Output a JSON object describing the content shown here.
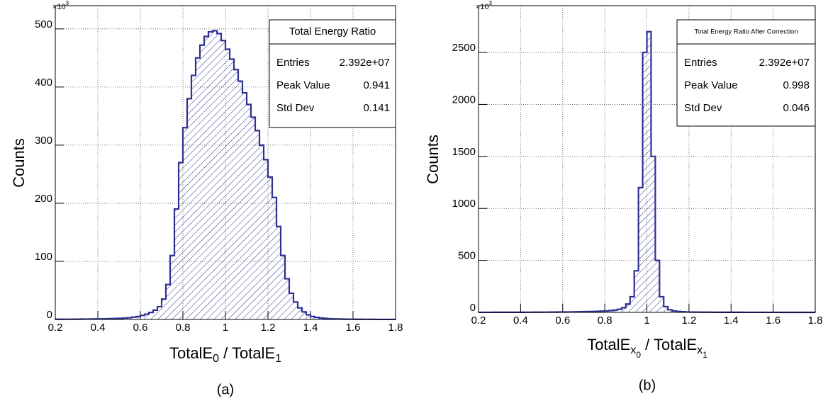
{
  "chart_data": [
    {
      "type": "histogram",
      "caption": "(a)",
      "y_label": "Counts",
      "x_label": [
        {
          "text": "TotalE",
          "level": 0
        },
        {
          "text": "0",
          "level": 1
        },
        {
          "text": " / TotalE",
          "level": 0
        },
        {
          "text": "1",
          "level": 1
        }
      ],
      "y_multiplier": {
        "base": "×10",
        "exponent": "3"
      },
      "bins": [
        0.2,
        0.22,
        0.24,
        0.26,
        0.28,
        0.3,
        0.32,
        0.34,
        0.36,
        0.38,
        0.4,
        0.42,
        0.44,
        0.46,
        0.48,
        0.5,
        0.52,
        0.54,
        0.56,
        0.58,
        0.6,
        0.62,
        0.64,
        0.66,
        0.68,
        0.7,
        0.72,
        0.74,
        0.76,
        0.78,
        0.8,
        0.82,
        0.84,
        0.86,
        0.88,
        0.9,
        0.92,
        0.94,
        0.96,
        0.98,
        1.0,
        1.02,
        1.04,
        1.06,
        1.08,
        1.1,
        1.12,
        1.14,
        1.16,
        1.18,
        1.2,
        1.22,
        1.24,
        1.26,
        1.28,
        1.3,
        1.32,
        1.34,
        1.36,
        1.38,
        1.4,
        1.42,
        1.44,
        1.46,
        1.48,
        1.5,
        1.52,
        1.54,
        1.56,
        1.58,
        1.6,
        1.62,
        1.64,
        1.66,
        1.68,
        1.7,
        1.72,
        1.74,
        1.76,
        1.78,
        1.8
      ],
      "values": [
        0.3,
        0.3,
        0.4,
        0.4,
        0.5,
        0.5,
        0.6,
        0.7,
        0.8,
        0.9,
        1,
        1.1,
        1.3,
        1.5,
        1.8,
        2,
        2.5,
        3,
        4,
        5,
        7,
        9,
        12,
        16,
        22,
        35,
        60,
        110,
        190,
        270,
        330,
        380,
        420,
        450,
        472,
        487,
        495,
        497,
        492,
        480,
        465,
        448,
        430,
        410,
        390,
        370,
        348,
        325,
        300,
        275,
        245,
        210,
        160,
        110,
        70,
        45,
        30,
        20,
        13,
        8,
        5,
        3.5,
        2.5,
        1.8,
        1.3,
        1,
        0.8,
        0.6,
        0.5,
        0.4,
        0.3,
        0.3,
        0.2,
        0.2,
        0.2,
        0.1,
        0.1,
        0.1,
        0.1,
        0.1
      ],
      "color": "#2e3192",
      "xlim": [
        0.2,
        1.8
      ],
      "xticks": [
        0.2,
        0.4,
        0.6,
        0.8,
        1,
        1.2,
        1.4,
        1.6,
        1.8
      ],
      "ylim": [
        0,
        540
      ],
      "yticks": [
        0,
        100,
        200,
        300,
        400,
        500
      ],
      "grid": true,
      "stats": {
        "title": "Total Energy Ratio",
        "rows": [
          [
            "Entries",
            "2.392e+07"
          ],
          [
            "Peak Value",
            "0.941"
          ],
          [
            "Std Dev",
            "0.141"
          ]
        ]
      }
    },
    {
      "type": "histogram",
      "caption": "(b)",
      "y_label": "Counts",
      "x_label": [
        {
          "text": "TotalE",
          "level": 0
        },
        {
          "text": "x",
          "level": 1
        },
        {
          "text": "0",
          "level": 2
        },
        {
          "text": " / TotalE",
          "level": 0
        },
        {
          "text": "x",
          "level": 1
        },
        {
          "text": "1",
          "level": 2
        }
      ],
      "y_multiplier": {
        "base": "×10",
        "exponent": "3"
      },
      "bins": [
        0.2,
        0.22,
        0.24,
        0.26,
        0.28,
        0.3,
        0.32,
        0.34,
        0.36,
        0.38,
        0.4,
        0.42,
        0.44,
        0.46,
        0.48,
        0.5,
        0.52,
        0.54,
        0.56,
        0.58,
        0.6,
        0.62,
        0.64,
        0.66,
        0.68,
        0.7,
        0.72,
        0.74,
        0.76,
        0.78,
        0.8,
        0.82,
        0.84,
        0.86,
        0.88,
        0.9,
        0.92,
        0.94,
        0.96,
        0.98,
        1.0,
        1.02,
        1.04,
        1.06,
        1.08,
        1.1,
        1.12,
        1.14,
        1.16,
        1.18,
        1.2,
        1.22,
        1.24,
        1.26,
        1.28,
        1.3,
        1.32,
        1.34,
        1.36,
        1.38,
        1.4,
        1.42,
        1.44,
        1.46,
        1.48,
        1.5,
        1.52,
        1.54,
        1.56,
        1.58,
        1.6,
        1.62,
        1.64,
        1.66,
        1.68,
        1.7,
        1.72,
        1.74,
        1.76,
        1.78,
        1.8
      ],
      "values": [
        0.5,
        0.5,
        0.5,
        0.6,
        0.6,
        0.7,
        0.7,
        0.8,
        0.9,
        1,
        1,
        1.2,
        1.3,
        1.5,
        1.7,
        2,
        2.2,
        2.5,
        2.8,
        3.2,
        3.6,
        4,
        4.5,
        5,
        6,
        7,
        8,
        9,
        10,
        12,
        14,
        17,
        22,
        30,
        45,
        80,
        150,
        400,
        1200,
        2500,
        2700,
        1500,
        500,
        150,
        55,
        25,
        14,
        9,
        6,
        4,
        3,
        2.5,
        2,
        1.8,
        1.5,
        1.3,
        1.1,
        1,
        0.9,
        0.8,
        0.7,
        0.6,
        0.6,
        0.5,
        0.5,
        0.4,
        0.4,
        0.4,
        0.3,
        0.3,
        0.3,
        0.3,
        0.2,
        0.2,
        0.2,
        0.2,
        0.2,
        0.1,
        0.1,
        0.1
      ],
      "color": "#2e3192",
      "xlim": [
        0.2,
        1.8
      ],
      "xticks": [
        0.2,
        0.4,
        0.6,
        0.8,
        1,
        1.2,
        1.4,
        1.6,
        1.8
      ],
      "ylim": [
        0,
        2950
      ],
      "yticks": [
        0,
        500,
        1000,
        1500,
        2000,
        2500
      ],
      "grid": true,
      "stats": {
        "title": "Total Energy Ratio After Correction",
        "rows": [
          [
            "Entries",
            "2.392e+07"
          ],
          [
            "Peak Value",
            "0.998"
          ],
          [
            "Std Dev",
            "0.046"
          ]
        ]
      }
    }
  ]
}
